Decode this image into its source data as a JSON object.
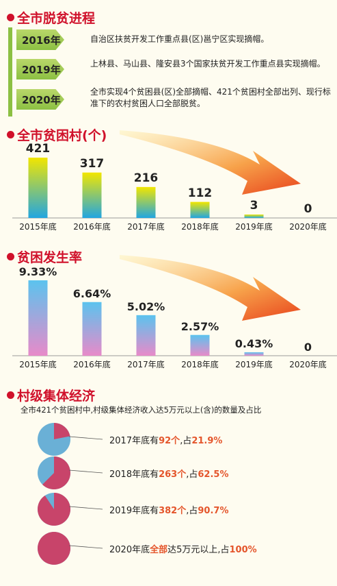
{
  "titles": {
    "progress": "全市脱贫进程",
    "villages": "全市贫困村(个)",
    "rate": "贫困发生率",
    "economy": "村级集体经济"
  },
  "timeline": [
    {
      "year": "2016年",
      "text": "自治区扶贫开发工作重点县(区)邕宁区实现摘帽。"
    },
    {
      "year": "2019年",
      "text": "上林县、马山县、隆安县3个国家扶贫开发工作重点县实现摘帽。"
    },
    {
      "year": "2020年",
      "text": "全市实现4个贫困县(区)全部摘帽、421个贫困村全部出列、现行标准下的农村贫困人口全部脱贫。"
    }
  ],
  "economy_subtitle": "全市421个贫困村中,村级集体经济收入达5万元以上(含)的数量及占比",
  "chart_data": [
    {
      "type": "bar",
      "title": "全市贫困村(个)",
      "categories": [
        "2015年底",
        "2016年底",
        "2017年底",
        "2018年底",
        "2019年底",
        "2020年底"
      ],
      "values": [
        421,
        317,
        216,
        112,
        3,
        0
      ],
      "labels": [
        "421",
        "317",
        "216",
        "112",
        "3",
        "0"
      ],
      "colors": {
        "top": "#f2e600",
        "bottom": "#22a6e0"
      }
    },
    {
      "type": "bar",
      "title": "贫困发生率",
      "categories": [
        "2015年底",
        "2016年底",
        "2017年底",
        "2018年底",
        "2019年底",
        "2020年底"
      ],
      "values": [
        9.33,
        6.64,
        5.02,
        2.57,
        0.43,
        0
      ],
      "labels": [
        "9.33%",
        "6.64%",
        "5.02%",
        "2.57%",
        "0.43%",
        "0"
      ],
      "colors": {
        "top": "#5bc3ee",
        "bottom": "#e88ac9"
      }
    },
    {
      "type": "pie",
      "title": "村级集体经济",
      "items": [
        {
          "prefix": "2017年底有",
          "count": "92个",
          "mid": ",占",
          "pct": "21.9%",
          "suffix": "",
          "fraction": 0.219
        },
        {
          "prefix": "2018年底有",
          "count": "263个",
          "mid": ",占",
          "pct": "62.5%",
          "suffix": "",
          "fraction": 0.625
        },
        {
          "prefix": "2019年底有",
          "count": "382个",
          "mid": ",占",
          "pct": "90.7%",
          "suffix": "",
          "fraction": 0.907
        },
        {
          "prefix": "2020年底",
          "count": "全部",
          "mid": "达5万元以上,占",
          "pct": "100%",
          "suffix": "",
          "fraction": 1.0
        }
      ],
      "colors": {
        "filled": "#c8446a",
        "rest": "#6ab0d6"
      }
    }
  ]
}
